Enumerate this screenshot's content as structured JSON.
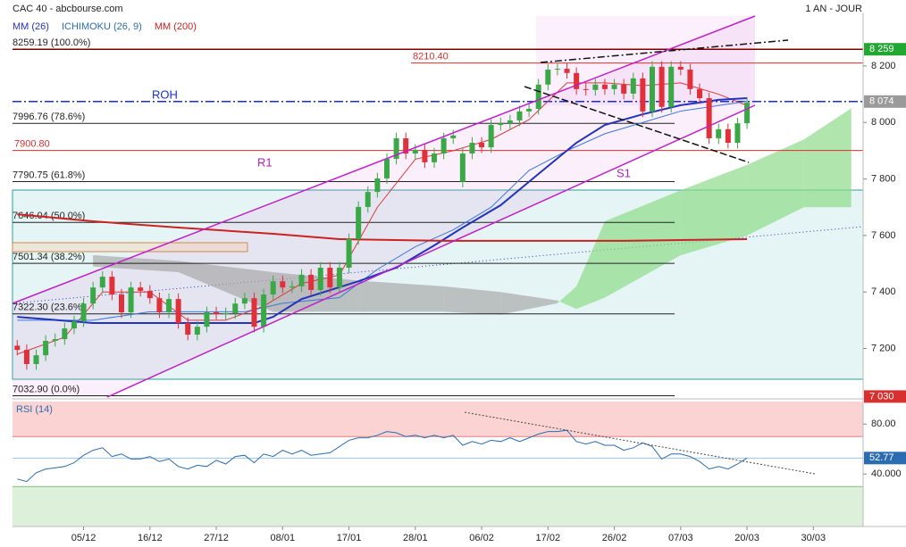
{
  "header": {
    "title": "CAC 40 - abcbourse.com",
    "period": "1 AN - JOUR"
  },
  "chart_data": [
    {
      "type": "candlestick",
      "up_color": "#3aa846",
      "down_color": "#e0303a",
      "xlim": [
        -0.5,
        89.25
      ],
      "xticks": [
        {
          "value": 7,
          "label": "05/12"
        },
        {
          "value": 14,
          "label": "16/12"
        },
        {
          "value": 21,
          "label": "27/12"
        },
        {
          "value": 28,
          "label": "08/01"
        },
        {
          "value": 35,
          "label": "17/01"
        },
        {
          "value": 42,
          "label": "28/01"
        },
        {
          "value": 49,
          "label": "06/02"
        },
        {
          "value": 56,
          "label": "17/02"
        },
        {
          "value": 63,
          "label": "26/02"
        },
        {
          "value": 70,
          "label": "07/03"
        },
        {
          "value": 77,
          "label": "20/03"
        },
        {
          "value": 84,
          "label": "30/03"
        }
      ],
      "ylim": [
        7028,
        8386
      ],
      "yticks": [
        {
          "value": 8200,
          "label": "8 200"
        },
        {
          "value": 8000,
          "label": "8 000"
        },
        {
          "value": 7800,
          "label": "7 800"
        },
        {
          "value": 7600,
          "label": "7 600"
        },
        {
          "value": 7400,
          "label": "7 400"
        },
        {
          "value": 7200,
          "label": "7 200"
        }
      ],
      "open": [
        7210,
        7195,
        7145,
        7176,
        7227,
        7233,
        7271,
        7296,
        7359,
        7416,
        7454,
        7391,
        7328,
        7416,
        7404,
        7378,
        7328,
        7375,
        7290,
        7249,
        7277,
        7328,
        7322,
        7325,
        7359,
        7378,
        7277,
        7391,
        7438,
        7416,
        7420,
        7461,
        7407,
        7486,
        7416,
        7486,
        7587,
        7701,
        7754,
        7802,
        7871,
        7944,
        7890,
        7903,
        7859,
        7890,
        7944,
        7790,
        7890,
        7928,
        7912,
        7991,
        7997,
        8007,
        8039,
        8048,
        8134,
        8187,
        8190,
        8175,
        8118,
        8115,
        8134,
        8118,
        8134,
        8102,
        8156,
        8039,
        8197,
        8055,
        8197,
        8187,
        8118,
        8086,
        7944,
        7976,
        7928,
        7997
      ],
      "high": [
        7230,
        7215,
        7196,
        7247,
        7253,
        7291,
        7316,
        7379,
        7436,
        7474,
        7474,
        7411,
        7436,
        7436,
        7424,
        7398,
        7395,
        7395,
        7310,
        7297,
        7348,
        7348,
        7345,
        7379,
        7398,
        7398,
        7411,
        7458,
        7458,
        7440,
        7481,
        7481,
        7506,
        7506,
        7506,
        7607,
        7721,
        7774,
        7822,
        7891,
        7964,
        7964,
        7923,
        7923,
        7910,
        7964,
        7974,
        7910,
        7948,
        7948,
        8011,
        8017,
        8027,
        8059,
        8068,
        8154,
        8207,
        8210,
        8210,
        8195,
        8138,
        8154,
        8154,
        8154,
        8154,
        8176,
        8176,
        8217,
        8217,
        8217,
        8217,
        8207,
        8138,
        8106,
        7996,
        7996,
        8017,
        8090
      ],
      "low": [
        7175,
        7125,
        7125,
        7156,
        7207,
        7213,
        7251,
        7276,
        7339,
        7396,
        7371,
        7308,
        7308,
        7384,
        7358,
        7308,
        7308,
        7270,
        7229,
        7229,
        7257,
        7302,
        7302,
        7305,
        7339,
        7257,
        7257,
        7371,
        7396,
        7396,
        7400,
        7387,
        7387,
        7396,
        7396,
        7466,
        7567,
        7681,
        7734,
        7782,
        7851,
        7870,
        7870,
        7839,
        7839,
        7870,
        7924,
        7770,
        7870,
        7892,
        7892,
        7971,
        7977,
        7987,
        8019,
        8028,
        8114,
        8167,
        8155,
        8098,
        8095,
        8095,
        8098,
        8098,
        8082,
        8082,
        8019,
        8019,
        8035,
        8035,
        8167,
        8098,
        8066,
        7924,
        7924,
        7908,
        7908,
        7977
      ],
      "close": [
        7195,
        7145,
        7176,
        7227,
        7233,
        7271,
        7296,
        7359,
        7416,
        7454,
        7391,
        7328,
        7416,
        7404,
        7378,
        7328,
        7375,
        7290,
        7249,
        7277,
        7328,
        7322,
        7325,
        7359,
        7378,
        7277,
        7391,
        7438,
        7416,
        7420,
        7461,
        7407,
        7486,
        7416,
        7486,
        7587,
        7701,
        7754,
        7802,
        7871,
        7944,
        7890,
        7903,
        7859,
        7890,
        7944,
        7954,
        7890,
        7928,
        7912,
        7991,
        7997,
        8007,
        8039,
        8048,
        8134,
        8187,
        8190,
        8175,
        8118,
        8115,
        8134,
        8118,
        8134,
        8102,
        8156,
        8039,
        8197,
        8055,
        8197,
        8187,
        8118,
        8086,
        7944,
        7976,
        7928,
        7997,
        8070
      ],
      "series": [
        {
          "name": "MM (26)",
          "color": "#2233bb",
          "width": 2,
          "x": [
            0,
            8,
            25,
            27,
            30,
            36,
            40,
            44,
            47,
            51,
            55,
            59,
            62,
            66,
            70,
            74,
            77
          ],
          "values": [
            7312,
            7290,
            7290,
            7312,
            7375,
            7438,
            7486,
            7565,
            7628,
            7707,
            7818,
            7928,
            7991,
            8029,
            8061,
            8080,
            8086
          ]
        },
        {
          "name": "MM (200)",
          "color": "#cc2222",
          "width": 2,
          "x": [
            0,
            8,
            17,
            27,
            34,
            45,
            55,
            64,
            77
          ],
          "values": [
            7675,
            7650,
            7628,
            7606,
            7587,
            7581,
            7581,
            7581,
            7587
          ]
        }
      ],
      "ichimoku": {
        "name": "ICHIMOKU (26, 9)",
        "color": "#2b6cb0",
        "tenkan": {
          "color": "#d83a3a",
          "x": [
            0,
            5,
            9,
            14,
            18,
            22,
            26,
            30,
            34,
            38,
            42,
            46,
            50,
            54,
            58,
            62,
            66,
            70,
            74,
            77
          ],
          "values": [
            7180,
            7240,
            7400,
            7400,
            7300,
            7300,
            7350,
            7430,
            7460,
            7700,
            7870,
            7900,
            7940,
            8010,
            8140,
            8140,
            8130,
            8140,
            8100,
            8060
          ]
        },
        "kijun": {
          "color": "#3a78d8",
          "x": [
            0,
            8,
            14,
            24,
            28,
            34,
            38,
            42,
            46,
            50,
            54,
            58,
            62,
            66,
            70,
            74,
            77
          ],
          "values": [
            7300,
            7300,
            7330,
            7330,
            7360,
            7380,
            7480,
            7560,
            7620,
            7700,
            7830,
            7900,
            7960,
            8000,
            8040,
            8060,
            8075
          ]
        },
        "cloud_x": [
          8,
          17,
          27,
          36,
          45,
          51,
          57,
          59,
          62,
          70,
          77,
          83,
          88
        ],
        "span_a": [
          7490,
          7470,
          7330,
          7330,
          7330,
          7320,
          7360,
          7420,
          7650,
          7760,
          7850,
          7940,
          8050
        ],
        "span_b": [
          7530,
          7510,
          7470,
          7440,
          7420,
          7400,
          7370,
          7340,
          7380,
          7530,
          7600,
          7700,
          7700
        ],
        "bullish_color": "#8fdc8a",
        "bearish_color": "#a9a9a9"
      },
      "fibonacci": [
        {
          "value": 8259.19,
          "label": "8259.19 (100.0%)"
        },
        {
          "value": 7996.76,
          "label": "7996.76 (78.6%)"
        },
        {
          "value": 7790.75,
          "label": "7790.75 (61.8%)"
        },
        {
          "value": 7646.04,
          "label": "7646.04 (50.0%)"
        },
        {
          "value": 7501.34,
          "label": "7501.34 (38.2%)"
        },
        {
          "value": 7322.3,
          "label": "7322.30 (23.6%)"
        },
        {
          "value": 7032.9,
          "label": "7032.90 (0.0%)"
        }
      ],
      "levels": [
        {
          "value": 8210.4,
          "label": "8210.40"
        },
        {
          "value": 7900.8,
          "label": "7900.80"
        }
      ],
      "level_color": "#d83030",
      "price_tags": [
        {
          "value": 8259,
          "label": "8 259",
          "color": "#22a832",
          "line_color": "#7a0000"
        },
        {
          "value": 8074,
          "label": "8 074",
          "color": "#9a9a9a",
          "line_color": "#1a2ecc"
        },
        {
          "value": 7030,
          "label": "7 030",
          "color": "#d83030"
        }
      ],
      "annotations": [
        "ROH",
        "R1",
        "S1"
      ]
    },
    {
      "type": "line",
      "title": "RSI (14)",
      "color": "#2b6cb0",
      "ylim": [
        -2,
        98
      ],
      "yticks": [
        {
          "value": 80,
          "label": "80.00"
        },
        {
          "value": 40,
          "label": "40.000"
        }
      ],
      "overbought": 70,
      "oversold": 30,
      "values": [
        36,
        34,
        41,
        44,
        45,
        46,
        49,
        55,
        59,
        61,
        54,
        56,
        52,
        52,
        54,
        50,
        52,
        46,
        44,
        47,
        46,
        51,
        48,
        54,
        55,
        49,
        56,
        54,
        59,
        56,
        59,
        55,
        56,
        57,
        62,
        67,
        69,
        69,
        71,
        74,
        73,
        70,
        71,
        69,
        71,
        69,
        71,
        63,
        66,
        64,
        67,
        66,
        69,
        66,
        69,
        72,
        74,
        74,
        75,
        66,
        64,
        66,
        63,
        63,
        59,
        61,
        65,
        62,
        52,
        56,
        56,
        54,
        50,
        44,
        46,
        44,
        48,
        52.77
      ]
    }
  ]
}
